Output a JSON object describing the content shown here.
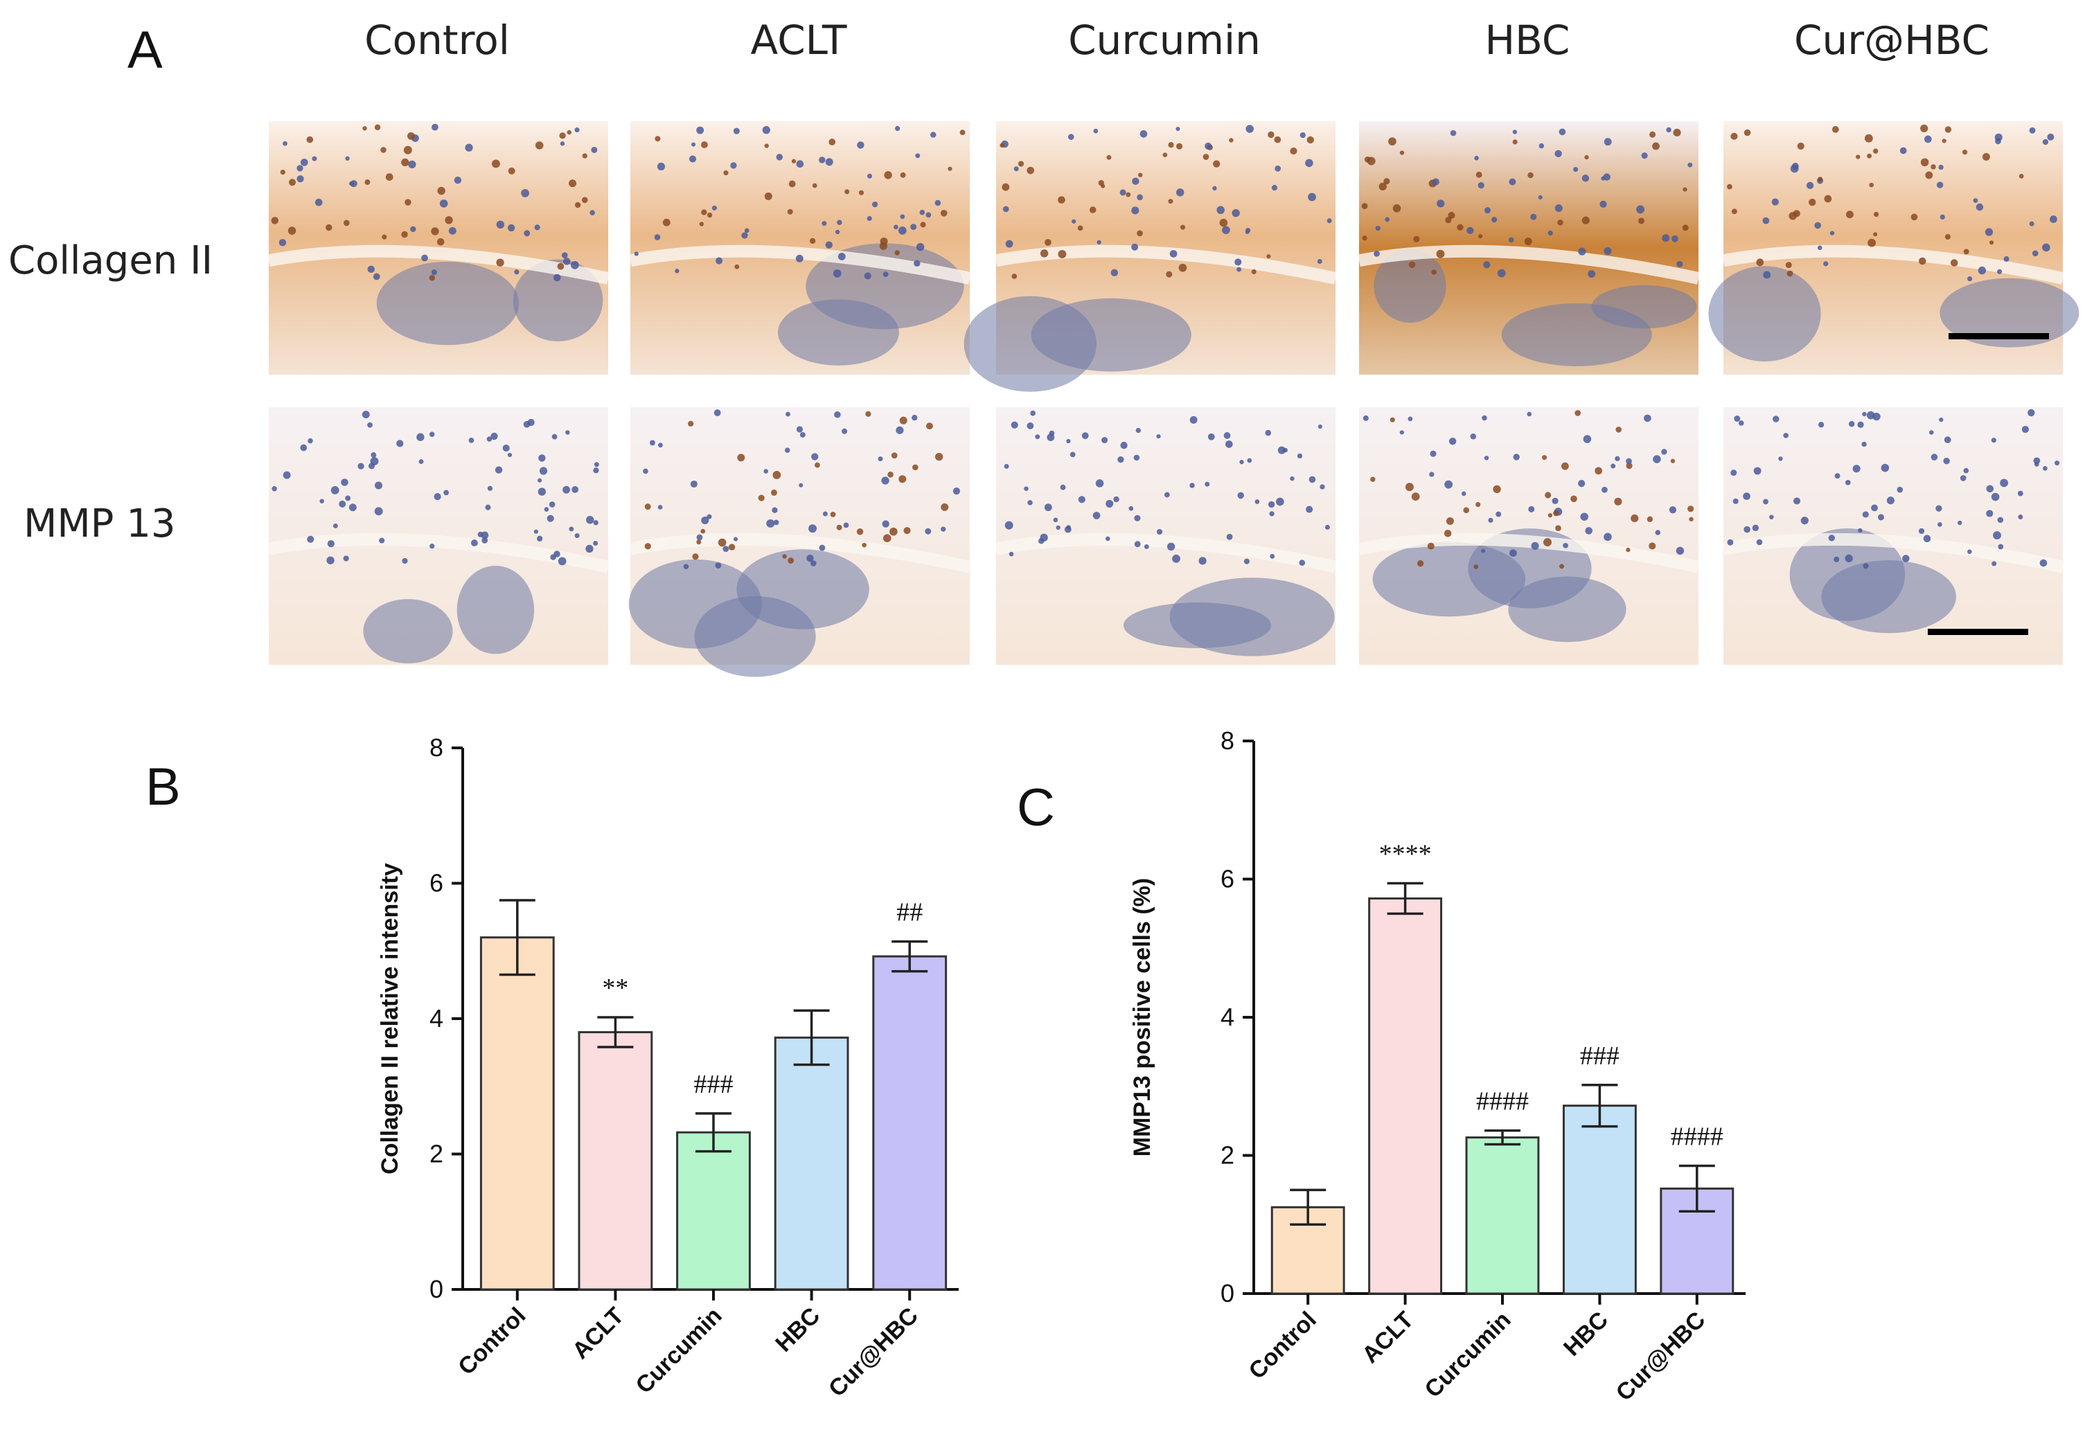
{
  "panel_labels": {
    "a": "A",
    "b": "B",
    "c": "C"
  },
  "micrographs": {
    "columns": [
      "Control",
      "ACLT",
      "Curcumin",
      "HBC",
      "Cur@HBC"
    ],
    "rows": [
      "Collagen  II",
      "MMP 13"
    ],
    "colors": {
      "stain": "#c8833f",
      "tissue": "#f3dcc3",
      "nuclei": "#3a4a8a",
      "background": "#faf3ee"
    }
  },
  "chart_data": [
    {
      "type": "bar",
      "panel": "B",
      "categories": [
        "Control",
        "ACLT",
        "Curcumin",
        "HBC",
        "Cur@HBC"
      ],
      "values": [
        5.2,
        3.8,
        2.32,
        3.72,
        4.92
      ],
      "errors": [
        0.55,
        0.22,
        0.28,
        0.4,
        0.22
      ],
      "significance": [
        "",
        "**",
        "###",
        "",
        "##"
      ],
      "colors": [
        "#fde0c2",
        "#fbdde0",
        "#b4f5cc",
        "#c4e2f7",
        "#c5c0f8"
      ],
      "ylabel": "Collagen  II relative intensity",
      "xlabel": "",
      "ylim": [
        0,
        8
      ],
      "yticks": [
        0,
        2,
        4,
        6,
        8
      ]
    },
    {
      "type": "bar",
      "panel": "C",
      "categories": [
        "Control",
        "ACLT",
        "Curcumin",
        "HBC",
        "Cur@HBC"
      ],
      "values": [
        1.25,
        5.72,
        2.26,
        2.72,
        1.52
      ],
      "errors": [
        0.25,
        0.22,
        0.1,
        0.3,
        0.33
      ],
      "significance": [
        "",
        "****",
        "####",
        "###",
        "####"
      ],
      "colors": [
        "#fde0c2",
        "#fbdde0",
        "#b4f5cc",
        "#c4e2f7",
        "#c5c0f8"
      ],
      "ylabel": "MMP13 positive cells (%)",
      "xlabel": "",
      "ylim": [
        0,
        8
      ],
      "yticks": [
        0,
        2,
        4,
        6,
        8
      ]
    }
  ]
}
